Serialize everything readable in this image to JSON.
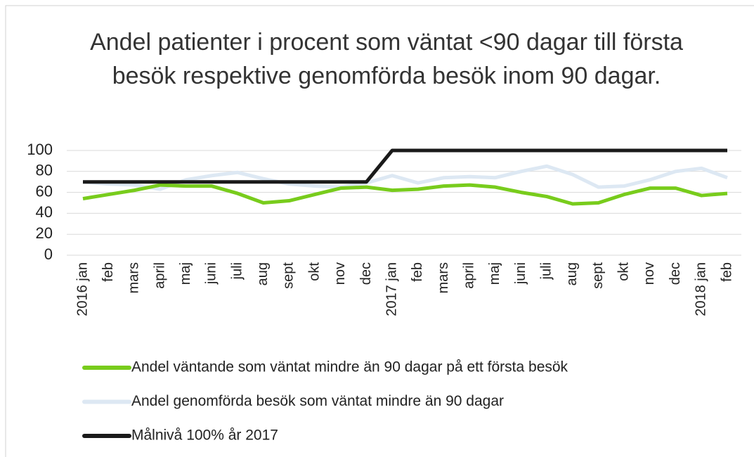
{
  "chart_data": {
    "type": "line",
    "title": "Andel patienter i procent som väntat <90 dagar till första besök respektive genomförda besök inom 90 dagar.",
    "categories": [
      "2016 jan",
      "feb",
      "mars",
      "april",
      "maj",
      "juni",
      "juli",
      "aug",
      "sept",
      "okt",
      "nov",
      "dec",
      "2017 jan",
      "feb",
      "mars",
      "april",
      "maj",
      "juni",
      "juli",
      "aug",
      "sept",
      "okt",
      "nov",
      "dec",
      "2018 jan",
      "feb"
    ],
    "series": [
      {
        "name": "Andel väntande som väntat mindre än 90 dagar på ett första besök",
        "color": "#78cc1c",
        "values": [
          54,
          58,
          62,
          67,
          66,
          66,
          59,
          50,
          52,
          58,
          64,
          65,
          62,
          63,
          66,
          67,
          65,
          60,
          56,
          49,
          50,
          58,
          64,
          64,
          57,
          59
        ]
      },
      {
        "name": "Andel genomförda besök som väntat mindre än 90 dagar",
        "color": "#dde8f3",
        "values": [
          70,
          68,
          67,
          63,
          72,
          76,
          79,
          73,
          68,
          66,
          65,
          69,
          76,
          69,
          74,
          75,
          74,
          80,
          85,
          77,
          65,
          66,
          72,
          80,
          83,
          74
        ]
      },
      {
        "name": "Målnivå 100% år 2017",
        "color": "#1a1a1a",
        "values": [
          70,
          70,
          70,
          70,
          70,
          70,
          70,
          70,
          70,
          70,
          70,
          70,
          100,
          100,
          100,
          100,
          100,
          100,
          100,
          100,
          100,
          100,
          100,
          100,
          100,
          100
        ]
      }
    ],
    "ylim": [
      0,
      100
    ],
    "yticks": [
      0,
      20,
      40,
      60,
      80,
      100
    ],
    "grid": true,
    "legend": "bottom"
  }
}
